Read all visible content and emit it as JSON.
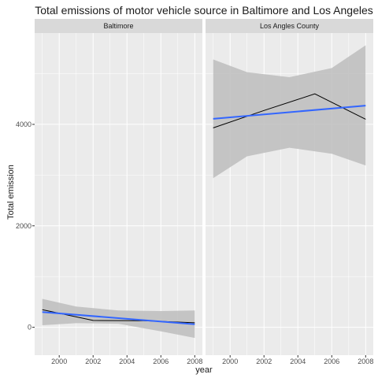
{
  "chart_data": {
    "type": "line",
    "title": "Total emissions of motor vehicle source in Baltimore and Los Angeles",
    "xlabel": "year",
    "ylabel": "Total emission",
    "x_ticks": [
      2000,
      2002,
      2004,
      2006,
      2008
    ],
    "y_ticks": [
      0,
      2000,
      4000
    ],
    "xlim": [
      1998.55,
      2008.45
    ],
    "ylim": [
      -550,
      5800
    ],
    "grid": true,
    "facets": [
      {
        "label": "Baltimore",
        "series": [
          {
            "x": [
              1999,
              2002,
              2005,
              2008
            ],
            "values": [
              346.8,
              134.3,
              130.4,
              88.3
            ]
          }
        ],
        "trend": {
          "x": [
            1999,
            2008
          ],
          "values": [
            300,
            60
          ]
        },
        "band": {
          "x": [
            1999,
            2001,
            2003.5,
            2006,
            2008
          ],
          "upper": [
            560,
            410,
            330,
            320,
            330
          ],
          "lower": [
            40,
            80,
            70,
            -80,
            -210
          ]
        }
      },
      {
        "label": "Los Angles County",
        "series": [
          {
            "x": [
              1999,
              2002,
              2005,
              2008
            ],
            "values": [
              3931,
              4274,
              4601,
              4101
            ]
          }
        ],
        "trend": {
          "x": [
            1999,
            2008
          ],
          "values": [
            4110,
            4370
          ]
        },
        "band": {
          "x": [
            1999,
            2001,
            2003.5,
            2006,
            2008
          ],
          "upper": [
            5280,
            5030,
            4930,
            5110,
            5560
          ],
          "lower": [
            2940,
            3370,
            3540,
            3420,
            3190
          ]
        }
      }
    ]
  },
  "colors": {
    "panel_bg": "#ebebeb",
    "strip_bg": "#d9d9d9",
    "grid": "#ffffff",
    "trend": "#3366ff",
    "band": "#bdbdbd",
    "line": "#000000"
  }
}
